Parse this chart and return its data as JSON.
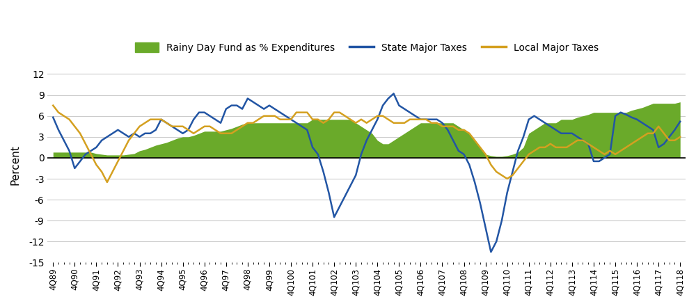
{
  "bg_color": "#ffffff",
  "rainy_color": "#6aaa2a",
  "state_color": "#2255a4",
  "local_color": "#d4a020",
  "grid_color": "#cccccc",
  "zero_line_color": "#000000",
  "ylim": [
    -15,
    13
  ],
  "yticks": [
    -15,
    -12,
    -9,
    -6,
    -3,
    0,
    3,
    6,
    9,
    12
  ],
  "ylabel": "Percent",
  "state_taxes": [
    5.8,
    4.0,
    2.5,
    1.0,
    -1.5,
    -0.5,
    0.5,
    1.0,
    1.5,
    2.5,
    3.0,
    3.5,
    4.0,
    3.5,
    3.0,
    3.5,
    3.0,
    3.5,
    3.5,
    4.0,
    5.5,
    5.0,
    4.5,
    4.0,
    3.5,
    4.0,
    5.5,
    6.5,
    6.5,
    6.0,
    5.5,
    5.0,
    7.0,
    7.5,
    7.5,
    7.0,
    8.5,
    8.0,
    7.5,
    7.0,
    7.5,
    7.0,
    6.5,
    6.0,
    5.5,
    5.0,
    4.5,
    4.0,
    1.5,
    0.5,
    -2.0,
    -5.0,
    -8.5,
    -7.0,
    -5.5,
    -4.0,
    -2.5,
    0.5,
    2.5,
    4.0,
    5.5,
    7.5,
    8.5,
    9.2,
    7.5,
    7.0,
    6.5,
    6.0,
    5.5,
    5.5,
    5.5,
    5.5,
    5.0,
    4.0,
    2.5,
    1.0,
    0.5,
    -1.0,
    -3.5,
    -6.5,
    -10.0,
    -13.5,
    -12.0,
    -9.0,
    -5.0,
    -2.0,
    1.0,
    3.0,
    5.5,
    6.0,
    5.5,
    5.0,
    4.5,
    4.0,
    3.5,
    3.5,
    3.5,
    3.0,
    2.5,
    2.0,
    -0.5,
    -0.5,
    0.0,
    0.5,
    6.0,
    6.5,
    6.2,
    5.8,
    5.5,
    5.0,
    4.5,
    4.0,
    1.5,
    2.0,
    3.0,
    4.0,
    5.2
  ],
  "local_taxes": [
    7.5,
    6.5,
    6.0,
    5.5,
    4.5,
    3.5,
    2.0,
    0.5,
    -1.0,
    -2.0,
    -3.5,
    -2.0,
    -0.5,
    1.0,
    2.5,
    3.5,
    4.5,
    5.0,
    5.5,
    5.5,
    5.5,
    5.0,
    4.5,
    4.5,
    4.5,
    4.0,
    3.5,
    4.0,
    4.5,
    4.5,
    4.0,
    3.5,
    3.5,
    3.5,
    4.0,
    4.5,
    5.0,
    5.0,
    5.5,
    6.0,
    6.0,
    6.0,
    5.5,
    5.5,
    5.5,
    6.5,
    6.5,
    6.5,
    5.5,
    5.5,
    5.0,
    5.5,
    6.5,
    6.5,
    6.0,
    5.5,
    5.0,
    5.5,
    5.0,
    5.5,
    6.0,
    6.0,
    5.5,
    5.0,
    5.0,
    5.0,
    5.5,
    5.5,
    5.5,
    5.5,
    5.0,
    5.0,
    4.5,
    4.5,
    4.5,
    4.0,
    4.0,
    3.5,
    2.5,
    1.5,
    0.5,
    -1.0,
    -2.0,
    -2.5,
    -3.0,
    -2.5,
    -1.5,
    -0.5,
    0.5,
    1.0,
    1.5,
    1.5,
    2.0,
    1.5,
    1.5,
    1.5,
    2.0,
    2.5,
    2.5,
    2.0,
    1.5,
    1.0,
    0.5,
    1.0,
    0.5,
    1.0,
    1.5,
    2.0,
    2.5,
    3.0,
    3.5,
    3.5,
    4.5,
    3.5,
    2.5,
    2.5,
    3.0
  ],
  "rainy_day": [
    0.8,
    0.8,
    0.8,
    0.8,
    0.8,
    0.8,
    0.8,
    0.8,
    0.6,
    0.5,
    0.4,
    0.4,
    0.4,
    0.4,
    0.5,
    0.6,
    1.0,
    1.2,
    1.5,
    1.8,
    2.0,
    2.2,
    2.5,
    2.8,
    3.0,
    3.0,
    3.2,
    3.5,
    3.8,
    3.8,
    3.8,
    3.8,
    4.0,
    4.2,
    4.5,
    4.8,
    5.0,
    5.0,
    5.0,
    5.0,
    5.0,
    5.0,
    5.0,
    5.0,
    5.0,
    5.0,
    5.0,
    5.0,
    5.5,
    5.5,
    5.5,
    5.5,
    5.5,
    5.5,
    5.5,
    5.5,
    5.0,
    4.5,
    4.0,
    3.5,
    2.5,
    2.0,
    2.0,
    2.5,
    3.0,
    3.5,
    4.0,
    4.5,
    5.0,
    5.0,
    5.0,
    5.0,
    5.0,
    5.0,
    5.0,
    4.5,
    4.0,
    3.5,
    2.5,
    1.5,
    0.5,
    0.3,
    0.2,
    0.2,
    0.3,
    0.5,
    0.8,
    1.5,
    3.5,
    4.0,
    4.5,
    5.0,
    5.0,
    5.0,
    5.5,
    5.5,
    5.5,
    5.8,
    6.0,
    6.2,
    6.5,
    6.5,
    6.5,
    6.5,
    6.5,
    6.5,
    6.5,
    6.8,
    7.0,
    7.2,
    7.5,
    7.8,
    7.8,
    7.8,
    7.8,
    7.8,
    8.0
  ]
}
